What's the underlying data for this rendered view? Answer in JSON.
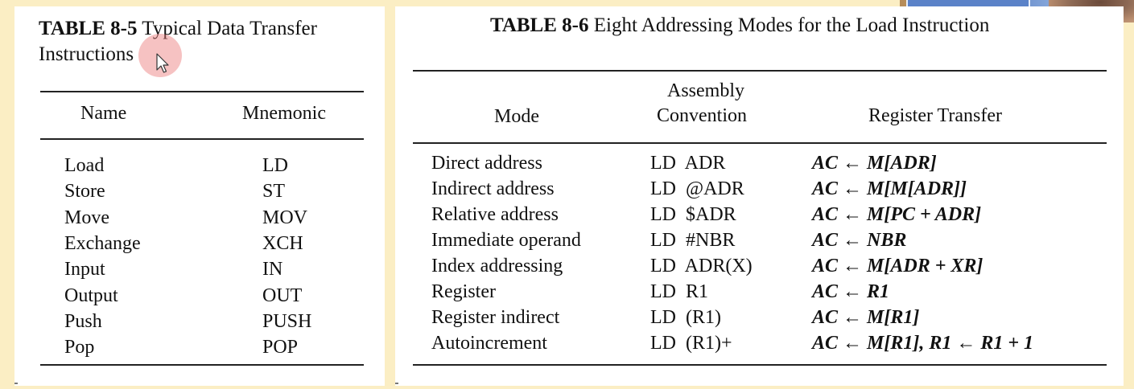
{
  "table_left": {
    "caption_bold": "TABLE 8-5",
    "caption_line1": "Typical Data Transfer",
    "caption_line2": "Instructions",
    "headers": {
      "name": "Name",
      "mnemonic": "Mnemonic"
    },
    "rows": [
      {
        "name": "Load",
        "mnemonic": "LD"
      },
      {
        "name": "Store",
        "mnemonic": "ST"
      },
      {
        "name": "Move",
        "mnemonic": "MOV"
      },
      {
        "name": "Exchange",
        "mnemonic": "XCH"
      },
      {
        "name": "Input",
        "mnemonic": "IN"
      },
      {
        "name": "Output",
        "mnemonic": "OUT"
      },
      {
        "name": "Push",
        "mnemonic": "PUSH"
      },
      {
        "name": "Pop",
        "mnemonic": "POP"
      }
    ]
  },
  "table_right": {
    "caption_bold": "TABLE 8-6",
    "caption_text": "Eight Addressing Modes for the Load Instruction",
    "headers": {
      "mode": "Mode",
      "assembly_line1": "Assembly",
      "assembly_line2": "Convention",
      "transfer": "Register Transfer"
    },
    "rows": [
      {
        "mode": "Direct address",
        "assembly": "LD  ADR",
        "transfer": "AC ← M[ADR]"
      },
      {
        "mode": "Indirect address",
        "assembly": "LD  @ADR",
        "transfer": "AC ← M[M[ADR]]"
      },
      {
        "mode": "Relative address",
        "assembly": "LD  $ADR",
        "transfer": "AC ← M[PC + ADR]"
      },
      {
        "mode": "Immediate operand",
        "assembly": "LD  #NBR",
        "transfer": "AC ← NBR"
      },
      {
        "mode": "Index addressing",
        "assembly": "LD  ADR(X)",
        "transfer": "AC ← M[ADR + XR]"
      },
      {
        "mode": "Register",
        "assembly": "LD  R1",
        "transfer": "AC ← R1"
      },
      {
        "mode": "Register indirect",
        "assembly": "LD  (R1)",
        "transfer": "AC ← M[R1]"
      },
      {
        "mode": "Autoincrement",
        "assembly": "LD  (R1)+",
        "transfer": "AC ← M[R1], R1 ← R1 + 1"
      }
    ]
  }
}
